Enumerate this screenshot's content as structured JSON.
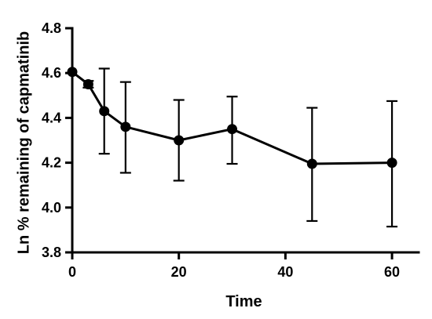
{
  "chart_data": {
    "type": "line",
    "title": "",
    "xlabel": "Time",
    "ylabel": "Ln % remaining of capmatinib",
    "xlim": [
      0,
      65
    ],
    "ylim": [
      3.8,
      4.8
    ],
    "x_ticks": [
      "0",
      "20",
      "40",
      "60"
    ],
    "y_ticks": [
      "3.8",
      "4.0",
      "4.2",
      "4.4",
      "4.6",
      "4.8"
    ],
    "grid": false,
    "legend": "none",
    "series": [
      {
        "color": "#000000",
        "points": [
          {
            "x": 0,
            "y": 4.605,
            "err_low": 4.605,
            "err_high": 4.605
          },
          {
            "x": 3,
            "y": 4.55,
            "err_low": 4.535,
            "err_high": 4.565
          },
          {
            "x": 6,
            "y": 4.43,
            "err_low": 4.24,
            "err_high": 4.62
          },
          {
            "x": 10,
            "y": 4.36,
            "err_low": 4.155,
            "err_high": 4.56
          },
          {
            "x": 20,
            "y": 4.3,
            "err_low": 4.12,
            "err_high": 4.48
          },
          {
            "x": 30,
            "y": 4.35,
            "err_low": 4.195,
            "err_high": 4.495
          },
          {
            "x": 45,
            "y": 4.195,
            "err_low": 3.94,
            "err_high": 4.445
          },
          {
            "x": 60,
            "y": 4.2,
            "err_low": 3.915,
            "err_high": 4.475
          }
        ]
      }
    ]
  }
}
